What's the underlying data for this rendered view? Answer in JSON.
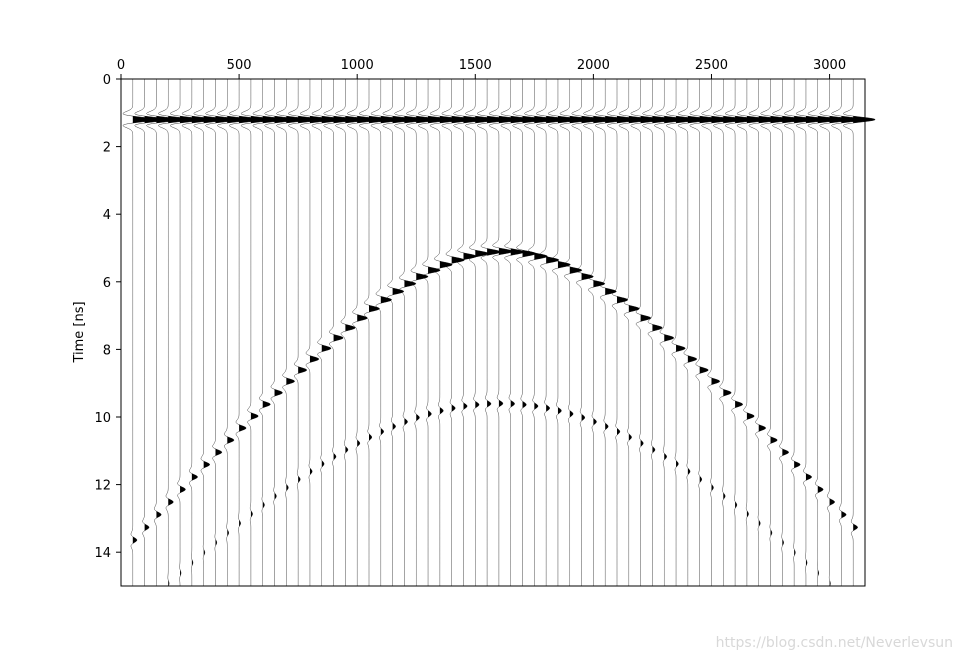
{
  "chart_data": {
    "type": "line",
    "subtype": "seismic-wiggle-traces",
    "title": "",
    "xlabel": "",
    "ylabel": "Time [ns]",
    "xlim": [
      0,
      3150
    ],
    "ylim": [
      15,
      0
    ],
    "x_axis_position": "top",
    "y_inverted": true,
    "grid": false,
    "legend": "none",
    "x_ticks": [
      "0",
      "500",
      "1000",
      "1500",
      "2000",
      "2500",
      "3000"
    ],
    "y_ticks": [
      "0",
      "2",
      "4",
      "6",
      "8",
      "10",
      "12",
      "14"
    ],
    "trace_count": 62,
    "trace_start": 50,
    "trace_spacing": 50,
    "direct_wave_time": 1.2,
    "reflection_hyperbola": {
      "apex_x": 1600,
      "apex_time": 5.1,
      "velocity_units_per_ns": 245
    },
    "multiple_hyperbola": {
      "apex_x": 1600,
      "apex_time": 9.6,
      "velocity_units_per_ns": 245
    },
    "line_color": "#000000",
    "fill_color": "#000000"
  },
  "watermark": "https://blog.csdn.net/Neverlevsun"
}
